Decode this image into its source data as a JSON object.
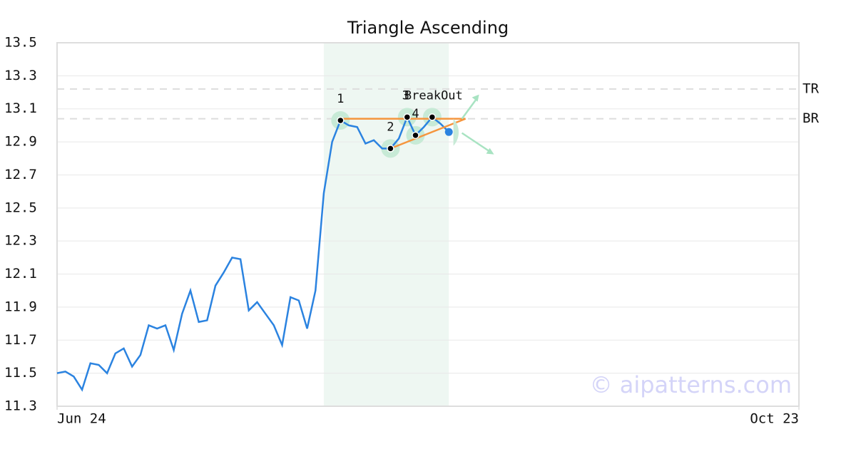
{
  "chart_data": {
    "type": "line",
    "title": "Triangle Ascending",
    "x": [
      0,
      1,
      2,
      3,
      4,
      5,
      6,
      7,
      8,
      9,
      10,
      11,
      12,
      13,
      14,
      15,
      16,
      17,
      18,
      19,
      20,
      21,
      22,
      23,
      24,
      25,
      26,
      27,
      28,
      29,
      30,
      31,
      32,
      33,
      34,
      35,
      36,
      37,
      38,
      39,
      40,
      41,
      42,
      43,
      44,
      45,
      46,
      47
    ],
    "series": [
      {
        "color": "#2b83e0",
        "values": [
          11.5,
          11.51,
          11.48,
          11.4,
          11.56,
          11.55,
          11.5,
          11.62,
          11.65,
          11.54,
          11.61,
          11.79,
          11.77,
          11.79,
          11.64,
          11.86,
          12.0,
          11.81,
          11.82,
          12.03,
          12.11,
          12.2,
          12.19,
          11.88,
          11.93,
          11.86,
          11.79,
          11.67,
          11.96,
          11.94,
          11.77,
          12.0,
          12.59,
          12.9,
          13.03,
          13.0,
          12.99,
          12.89,
          12.91,
          12.86,
          12.86,
          12.92,
          13.05,
          12.94,
          12.99,
          13.05,
          13.01,
          12.96
        ]
      }
    ],
    "xlim": [
      0,
      89
    ],
    "xticks": [
      {
        "value": 0,
        "label": "Jun 24"
      },
      {
        "value": 89,
        "label": "Oct 23"
      }
    ],
    "ylim": [
      11.3,
      13.5
    ],
    "yticks": [
      11.3,
      11.5,
      11.7,
      11.9,
      12.1,
      12.3,
      12.5,
      12.7,
      12.9,
      13.1,
      13.3,
      13.5
    ],
    "grid": true,
    "highlight": [
      32,
      47
    ],
    "hlines": [
      {
        "label": "TR",
        "value": 13.22
      },
      {
        "label": "BR",
        "value": 13.04
      }
    ],
    "pattern_points": [
      {
        "label": "1",
        "x": 34,
        "y": 13.03
      },
      {
        "label": "2",
        "x": 40,
        "y": 12.86
      },
      {
        "label": "3",
        "x": 42,
        "y": 13.05
      },
      {
        "label": "4",
        "x": 43,
        "y": 12.94
      },
      {
        "label": "BreakOut",
        "x": 45,
        "y": 13.05
      }
    ],
    "resistance": {
      "x": [
        34,
        49
      ],
      "y": [
        13.04,
        13.04
      ]
    },
    "support": {
      "x": [
        40,
        49
      ],
      "y": [
        12.86,
        13.04
      ]
    },
    "watermark": "© aipatterns.com"
  }
}
